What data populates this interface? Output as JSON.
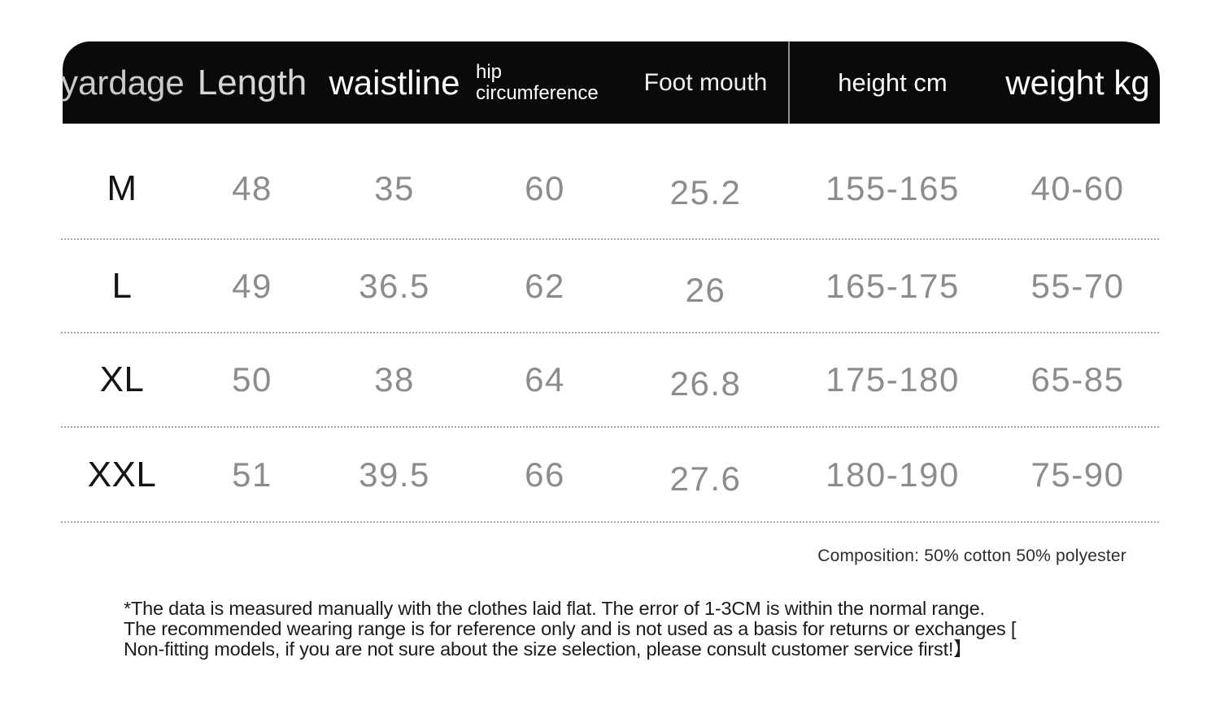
{
  "chart_data": {
    "type": "table",
    "columns": [
      "yardage",
      "Length",
      "waistline",
      "hip circumference",
      "Foot mouth",
      "height cm",
      "weight kg"
    ],
    "rows": [
      [
        "M",
        "48",
        "35",
        "60",
        "25.2",
        "155-165",
        "40-60"
      ],
      [
        "L",
        "49",
        "36.5",
        "62",
        "26",
        "165-175",
        "55-70"
      ],
      [
        "XL",
        "50",
        "38",
        "64",
        "26.8",
        "175-180",
        "65-85"
      ],
      [
        "XXL",
        "51",
        "39.5",
        "66",
        "27.6",
        "180-190",
        "75-90"
      ]
    ],
    "notes": [
      "Composition: 50% cotton 50% polyester",
      "*The data is measured manually with the clothes laid flat. The error of 1-3CM is within the normal range. The recommended wearing range is for reference only and is not used as a basis for returns or exchanges [ Non-fitting models, if you are not sure about the size selection, please consult customer service first!】"
    ]
  },
  "header": {
    "yardage": "yardage",
    "length": "Length",
    "waistline": "waistline",
    "hip_line1": "hip",
    "hip_line2": "circumference",
    "foot_mouth": "Foot mouth",
    "height_cm": "height cm",
    "weight_kg": "weight kg"
  },
  "composition": "Composition: 50% cotton 50% polyester",
  "disclaimer": {
    "line1": "*The data is measured manually with the clothes laid flat. The error of 1-3CM is within the normal range.",
    "line2": "The recommended wearing range is for reference only and is not used as a basis for returns or exchanges [",
    "line3": "Non-fitting models, if you are not sure about the size selection, please consult customer service first!】"
  },
  "colors": {
    "header_bg": "#0a0a0a",
    "data_text": "#8c8c8c",
    "size_text": "#141414",
    "divider": "#8f8f8f",
    "dotted_line": "#a8a8a8"
  }
}
